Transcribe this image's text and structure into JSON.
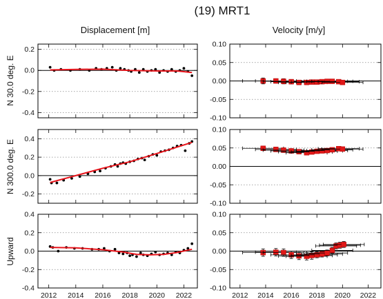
{
  "figure": {
    "title": "(19) MRT1",
    "col_titles": [
      "Displacement [m]",
      "Velocity [m/y]"
    ],
    "row_labels": [
      "N  30.0 deg. E",
      "N 300.0 deg. E",
      "Upward"
    ]
  },
  "colors": {
    "fit": "#e8141b",
    "velocity_marker": "#e01818",
    "points": "#000000"
  },
  "chart_data": [
    {
      "type": "scatter",
      "panel": "displacement-n30",
      "title": "Displacement [m]",
      "ylabel": "N  30.0 deg. E",
      "xlim": [
        2011.2,
        2023.0
      ],
      "ylim": [
        -0.45,
        0.25
      ],
      "xticks": [
        2012,
        2014,
        2016,
        2018,
        2020,
        2022
      ],
      "show_xticklabels": false,
      "yticks": [
        -0.4,
        -0.2,
        0.0,
        0.2
      ],
      "ytick_labels": [
        "-0.4",
        "-0.2",
        "0.0",
        "0.2"
      ],
      "points": [
        [
          2012.1,
          0.03
        ],
        [
          2012.4,
          0.0
        ],
        [
          2012.9,
          0.01
        ],
        [
          2013.6,
          0.0
        ],
        [
          2014.3,
          0.01
        ],
        [
          2015.0,
          0.0
        ],
        [
          2015.5,
          0.02
        ],
        [
          2015.9,
          0.01
        ],
        [
          2016.3,
          0.02
        ],
        [
          2016.7,
          0.03
        ],
        [
          2017.0,
          0.0
        ],
        [
          2017.3,
          0.02
        ],
        [
          2017.6,
          0.01
        ],
        [
          2017.9,
          0.0
        ],
        [
          2018.1,
          -0.01
        ],
        [
          2018.4,
          0.01
        ],
        [
          2018.7,
          -0.02
        ],
        [
          2019.0,
          0.01
        ],
        [
          2019.3,
          -0.01
        ],
        [
          2019.6,
          0.0
        ],
        [
          2019.9,
          0.01
        ],
        [
          2020.2,
          -0.02
        ],
        [
          2020.5,
          0.0
        ],
        [
          2020.8,
          -0.01
        ],
        [
          2021.1,
          0.01
        ],
        [
          2021.4,
          -0.01
        ],
        [
          2021.7,
          0.0
        ],
        [
          2022.0,
          0.02
        ],
        [
          2022.3,
          -0.01
        ],
        [
          2022.6,
          -0.05
        ]
      ],
      "fit": [
        [
          2012.1,
          0.005
        ],
        [
          2014.0,
          0.01
        ],
        [
          2016.0,
          0.012
        ],
        [
          2018.0,
          0.0
        ],
        [
          2020.0,
          -0.005
        ],
        [
          2021.5,
          -0.005
        ],
        [
          2022.6,
          -0.02
        ]
      ]
    },
    {
      "type": "scatter",
      "panel": "velocity-n30",
      "title": "Velocity [m/y]",
      "ylabel": "",
      "xlim": [
        2011.2,
        2023.0
      ],
      "ylim": [
        -0.1,
        0.1
      ],
      "xticks": [
        2012,
        2014,
        2016,
        2018,
        2020,
        2022
      ],
      "show_xticklabels": false,
      "yticks": [
        -0.1,
        -0.05,
        0.0,
        0.05,
        0.1
      ],
      "ytick_labels": [
        "-0.10",
        "-0.05",
        "0.00",
        "0.05",
        "0.10"
      ],
      "points": [
        [
          2013.8,
          0.0,
          0.008
        ],
        [
          2014.8,
          0.0,
          0.006
        ],
        [
          2015.4,
          -0.001,
          0.007
        ],
        [
          2016.0,
          -0.002,
          0.006
        ],
        [
          2016.6,
          -0.004,
          0.006
        ],
        [
          2017.2,
          -0.004,
          0.006
        ],
        [
          2017.6,
          -0.003,
          0.005
        ],
        [
          2018.0,
          -0.003,
          0.005
        ],
        [
          2018.4,
          -0.002,
          0.005
        ],
        [
          2018.8,
          -0.001,
          0.005
        ],
        [
          2019.2,
          -0.001,
          0.005
        ],
        [
          2019.7,
          -0.002,
          0.005
        ],
        [
          2020.0,
          -0.004,
          0.005
        ]
      ],
      "hspan": 3.2
    },
    {
      "type": "scatter",
      "panel": "displacement-n300",
      "title": "",
      "ylabel": "N 300.0 deg. E",
      "xlim": [
        2011.2,
        2023.0
      ],
      "ylim": [
        -0.3,
        0.5
      ],
      "xticks": [
        2012,
        2014,
        2016,
        2018,
        2020,
        2022
      ],
      "show_xticklabels": false,
      "yticks": [
        -0.2,
        0.0,
        0.2,
        0.4
      ],
      "ytick_labels": [
        "-0.2",
        "0.0",
        "0.2",
        "0.4"
      ],
      "points": [
        [
          2012.1,
          -0.04
        ],
        [
          2012.2,
          -0.08
        ],
        [
          2012.6,
          -0.08
        ],
        [
          2013.1,
          -0.05
        ],
        [
          2013.7,
          -0.03
        ],
        [
          2014.3,
          -0.01
        ],
        [
          2014.9,
          0.02
        ],
        [
          2015.4,
          0.04
        ],
        [
          2015.8,
          0.05
        ],
        [
          2016.2,
          0.08
        ],
        [
          2016.6,
          0.1
        ],
        [
          2016.9,
          0.12
        ],
        [
          2017.1,
          0.1
        ],
        [
          2017.3,
          0.13
        ],
        [
          2017.5,
          0.14
        ],
        [
          2017.7,
          0.13
        ],
        [
          2018.0,
          0.15
        ],
        [
          2018.3,
          0.16
        ],
        [
          2018.6,
          0.18
        ],
        [
          2018.9,
          0.19
        ],
        [
          2019.1,
          0.17
        ],
        [
          2019.4,
          0.21
        ],
        [
          2019.7,
          0.23
        ],
        [
          2020.0,
          0.22
        ],
        [
          2020.3,
          0.26
        ],
        [
          2020.6,
          0.27
        ],
        [
          2020.9,
          0.28
        ],
        [
          2021.2,
          0.3
        ],
        [
          2021.5,
          0.32
        ],
        [
          2021.8,
          0.33
        ],
        [
          2022.1,
          0.27
        ],
        [
          2022.4,
          0.35
        ],
        [
          2022.6,
          0.37
        ]
      ],
      "fit": [
        [
          2012.1,
          -0.075
        ],
        [
          2014.0,
          0.0
        ],
        [
          2016.0,
          0.08
        ],
        [
          2018.0,
          0.15
        ],
        [
          2020.0,
          0.24
        ],
        [
          2022.6,
          0.36
        ]
      ]
    },
    {
      "type": "scatter",
      "panel": "velocity-n300",
      "title": "",
      "ylabel": "",
      "xlim": [
        2011.2,
        2023.0
      ],
      "ylim": [
        -0.1,
        0.1
      ],
      "xticks": [
        2012,
        2014,
        2016,
        2018,
        2020,
        2022
      ],
      "show_xticklabels": false,
      "yticks": [
        -0.1,
        -0.05,
        0.0,
        0.05,
        0.1
      ],
      "ytick_labels": [
        "-0.10",
        "-0.05",
        "0.00",
        "0.05",
        "0.10"
      ],
      "points": [
        [
          2013.8,
          0.049,
          0.006
        ],
        [
          2014.8,
          0.046,
          0.006
        ],
        [
          2015.4,
          0.044,
          0.006
        ],
        [
          2016.0,
          0.042,
          0.006
        ],
        [
          2016.6,
          0.04,
          0.006
        ],
        [
          2017.2,
          0.037,
          0.005
        ],
        [
          2017.6,
          0.039,
          0.005
        ],
        [
          2018.0,
          0.041,
          0.005
        ],
        [
          2018.4,
          0.042,
          0.005
        ],
        [
          2018.8,
          0.043,
          0.005
        ],
        [
          2019.2,
          0.045,
          0.005
        ],
        [
          2019.7,
          0.048,
          0.005
        ],
        [
          2020.0,
          0.047,
          0.005
        ]
      ],
      "hspan": 3.2
    },
    {
      "type": "scatter",
      "panel": "displacement-up",
      "title": "",
      "ylabel": "Upward",
      "xlim": [
        2011.2,
        2023.0
      ],
      "ylim": [
        -0.4,
        0.4
      ],
      "xticks": [
        2012,
        2014,
        2016,
        2018,
        2020,
        2022
      ],
      "show_xticklabels": true,
      "yticks": [
        -0.4,
        -0.2,
        0.0,
        0.2,
        0.4
      ],
      "ytick_labels": [
        "-0.4",
        "-0.2",
        "0.0",
        "0.2",
        "0.4"
      ],
      "points": [
        [
          2012.1,
          0.05
        ],
        [
          2012.3,
          0.04
        ],
        [
          2012.7,
          0.0
        ],
        [
          2013.3,
          0.04
        ],
        [
          2013.9,
          0.03
        ],
        [
          2014.5,
          0.03
        ],
        [
          2015.2,
          0.02
        ],
        [
          2015.7,
          0.02
        ],
        [
          2016.1,
          0.03
        ],
        [
          2016.5,
          0.0
        ],
        [
          2016.9,
          0.02
        ],
        [
          2017.2,
          -0.02
        ],
        [
          2017.5,
          -0.03
        ],
        [
          2017.8,
          -0.02
        ],
        [
          2018.0,
          -0.05
        ],
        [
          2018.2,
          -0.04
        ],
        [
          2018.5,
          -0.06
        ],
        [
          2018.8,
          -0.02
        ],
        [
          2019.0,
          -0.04
        ],
        [
          2019.3,
          -0.05
        ],
        [
          2019.6,
          -0.03
        ],
        [
          2019.9,
          -0.01
        ],
        [
          2020.2,
          -0.04
        ],
        [
          2020.5,
          -0.03
        ],
        [
          2020.8,
          -0.02
        ],
        [
          2021.1,
          -0.04
        ],
        [
          2021.4,
          -0.01
        ],
        [
          2021.7,
          -0.02
        ],
        [
          2022.0,
          0.01
        ],
        [
          2022.3,
          0.03
        ],
        [
          2022.6,
          0.08
        ]
      ],
      "fit": [
        [
          2012.1,
          0.04
        ],
        [
          2014.0,
          0.035
        ],
        [
          2016.0,
          0.015
        ],
        [
          2017.5,
          -0.01
        ],
        [
          2018.5,
          -0.035
        ],
        [
          2019.5,
          -0.04
        ],
        [
          2020.5,
          -0.035
        ],
        [
          2021.5,
          -0.015
        ],
        [
          2022.6,
          0.02
        ]
      ]
    },
    {
      "type": "scatter",
      "panel": "velocity-up",
      "title": "",
      "ylabel": "",
      "xlim": [
        2011.2,
        2023.0
      ],
      "ylim": [
        -0.1,
        0.1
      ],
      "xticks": [
        2012,
        2014,
        2016,
        2018,
        2020,
        2022
      ],
      "show_xticklabels": true,
      "yticks": [
        -0.1,
        -0.05,
        0.0,
        0.05,
        0.1
      ],
      "ytick_labels": [
        "-0.10",
        "-0.05",
        "0.00",
        "0.05",
        "0.10"
      ],
      "points": [
        [
          2013.8,
          -0.004,
          0.01
        ],
        [
          2014.8,
          -0.003,
          0.01
        ],
        [
          2015.4,
          -0.004,
          0.01
        ],
        [
          2016.0,
          -0.01,
          0.01
        ],
        [
          2016.6,
          -0.013,
          0.01
        ],
        [
          2017.2,
          -0.014,
          0.01
        ],
        [
          2017.6,
          -0.012,
          0.01
        ],
        [
          2018.0,
          -0.01,
          0.008
        ],
        [
          2018.4,
          -0.008,
          0.008
        ],
        [
          2018.8,
          -0.005,
          0.008
        ],
        [
          2019.2,
          0.002,
          0.008
        ],
        [
          2019.5,
          0.014,
          0.008
        ],
        [
          2019.8,
          0.016,
          0.008
        ],
        [
          2020.1,
          0.018,
          0.008
        ]
      ],
      "hspan": 3.2
    }
  ]
}
